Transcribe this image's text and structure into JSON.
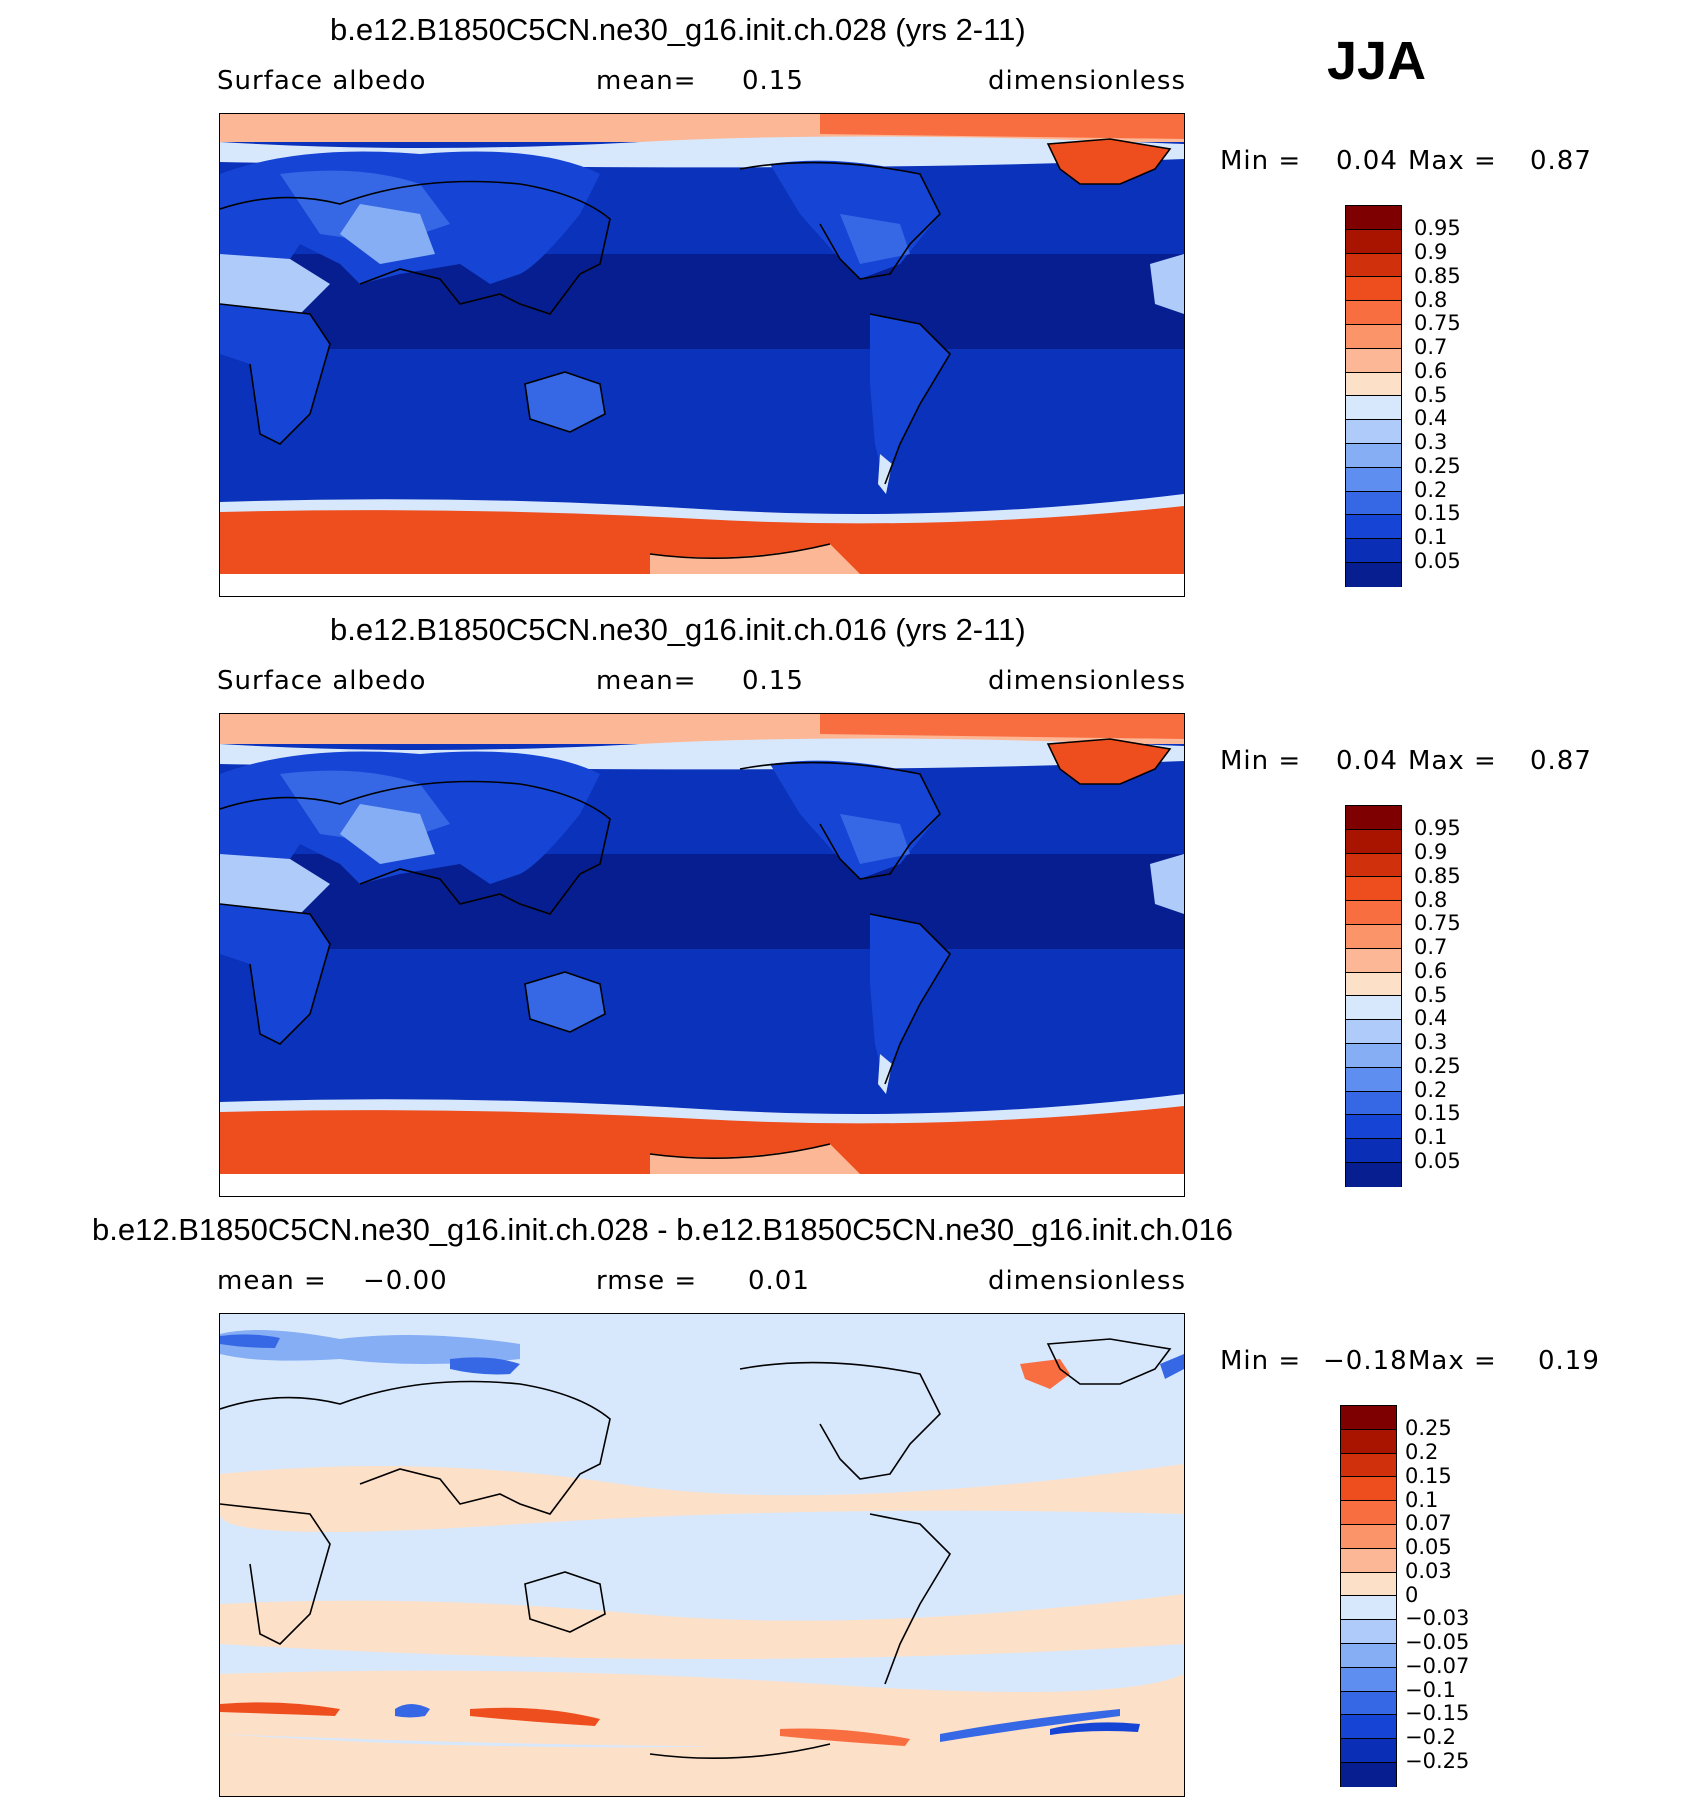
{
  "season": "JJA",
  "panels": [
    {
      "title": "b.e12.B1850C5CN.ne30_g16.init.ch.028 (yrs 2-11)",
      "variable": "Surface albedo",
      "stat_label": "mean=",
      "stat_value": "0.15",
      "units": "dimensionless",
      "min_label": "Min =",
      "min_value": "0.04",
      "max_label": "Max =",
      "max_value": "0.87",
      "colorbar_labels": [
        "0.95",
        "0.9",
        "0.85",
        "0.8",
        "0.75",
        "0.7",
        "0.6",
        "0.5",
        "0.4",
        "0.3",
        "0.25",
        "0.2",
        "0.15",
        "0.1",
        "0.05"
      ]
    },
    {
      "title": "b.e12.B1850C5CN.ne30_g16.init.ch.016 (yrs 2-11)",
      "variable": "Surface albedo",
      "stat_label": "mean=",
      "stat_value": "0.15",
      "units": "dimensionless",
      "min_label": "Min =",
      "min_value": "0.04",
      "max_label": "Max =",
      "max_value": "0.87",
      "colorbar_labels": [
        "0.95",
        "0.9",
        "0.85",
        "0.8",
        "0.75",
        "0.7",
        "0.6",
        "0.5",
        "0.4",
        "0.3",
        "0.25",
        "0.2",
        "0.15",
        "0.1",
        "0.05"
      ]
    },
    {
      "title": "b.e12.B1850C5CN.ne30_g16.init.ch.028 - b.e12.B1850C5CN.ne30_g16.init.ch.016",
      "stat_label": "mean =",
      "stat_value": "−0.00",
      "stat2_label": "rmse =",
      "stat2_value": "0.01",
      "units": "dimensionless",
      "min_label": "Min =",
      "min_value": "−0.18",
      "max_label": "Max =",
      "max_value": "0.19",
      "colorbar_labels": [
        "0.25",
        "0.2",
        "0.15",
        "0.1",
        "0.07",
        "0.05",
        "0.03",
        "0",
        "−0.03",
        "−0.05",
        "−0.07",
        "−0.1",
        "−0.15",
        "−0.2",
        "−0.25"
      ]
    }
  ],
  "colors": {
    "abs_scale": [
      "#7f0000",
      "#a81400",
      "#d0300c",
      "#ee4e1e",
      "#f96e40",
      "#fb9468",
      "#fcb796",
      "#fde0c8",
      "#d8e8fc",
      "#aecbf9",
      "#86aef5",
      "#5e8ff0",
      "#3668e6",
      "#1645d6",
      "#0a2fb6",
      "#061e8f"
    ],
    "diff_scale": [
      "#7f0000",
      "#a81400",
      "#d0300c",
      "#ee4e1e",
      "#f96e40",
      "#fb9468",
      "#fcb796",
      "#fde0c8",
      "#fff3e8",
      "#d8e8fc",
      "#aecbf9",
      "#86aef5",
      "#5e8ff0",
      "#3668e6",
      "#1645d6",
      "#0a2fb6",
      "#061e8f"
    ]
  }
}
